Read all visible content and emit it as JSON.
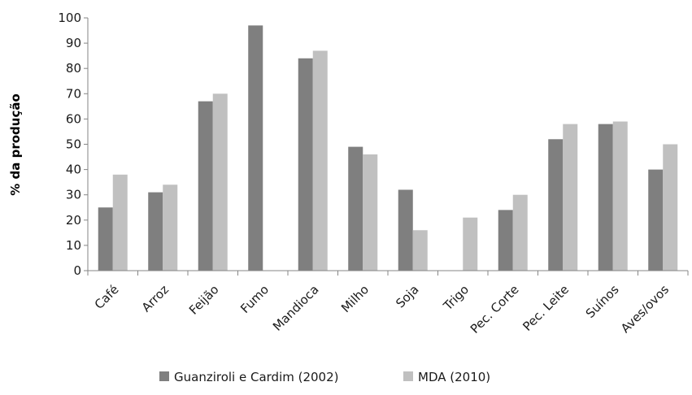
{
  "chart_data": {
    "type": "bar",
    "ylabel": "% da produção",
    "ylim": [
      0,
      100
    ],
    "yticks": [
      "0",
      "10",
      "20",
      "30",
      "40",
      "50",
      "60",
      "70",
      "80",
      "90",
      "100"
    ],
    "categories": [
      "Café",
      "Arroz",
      "Feijão",
      "Fumo",
      "Mandioca",
      "Milho",
      "Soja",
      "Trigo",
      "Pec. Corte",
      "Pec. Leite",
      "Suínos",
      "Aves/ovos"
    ],
    "series": [
      {
        "name": "Guanziroli e Cardim (2002)",
        "color": "#7f7f7f",
        "values": [
          25,
          31,
          67,
          97,
          84,
          49,
          32,
          null,
          24,
          52,
          58,
          40
        ]
      },
      {
        "name": "MDA (2010)",
        "color": "#c0c0c0",
        "values": [
          38,
          34,
          70,
          null,
          87,
          46,
          16,
          21,
          30,
          58,
          59,
          50
        ]
      }
    ],
    "grid": false,
    "legend": "bottom"
  }
}
